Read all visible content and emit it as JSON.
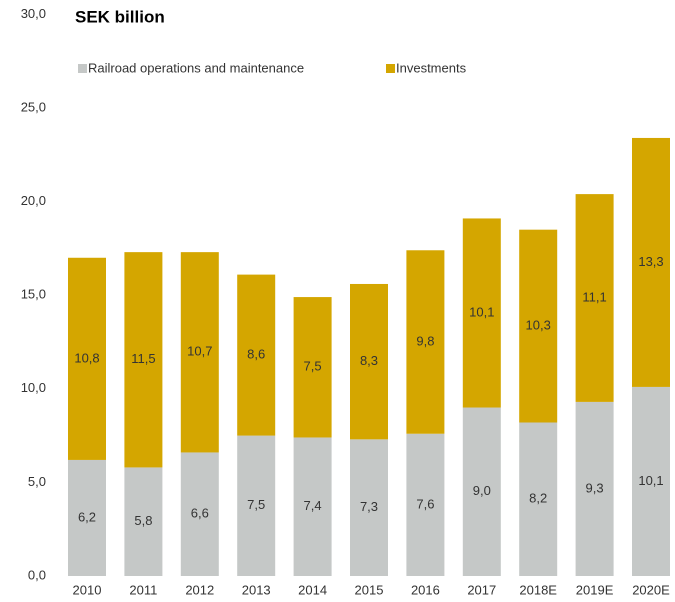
{
  "chart_data": {
    "type": "bar",
    "stacked": true,
    "title": "SEK billion",
    "categories": [
      "2010",
      "2011",
      "2012",
      "2013",
      "2014",
      "2015",
      "2016",
      "2017",
      "2018E",
      "2019E",
      "2020E"
    ],
    "series": [
      {
        "name": "Railroad operations and maintenance",
        "color": "#c5c8c7",
        "values": [
          6.2,
          5.8,
          6.6,
          7.5,
          7.4,
          7.3,
          7.6,
          9.0,
          8.2,
          9.3,
          10.1
        ],
        "value_labels": [
          "6,2",
          "5,8",
          "6,6",
          "7,5",
          "7,4",
          "7,3",
          "7,6",
          "9,0",
          "8,2",
          "9,3",
          "10,1"
        ]
      },
      {
        "name": "Investments",
        "color": "#d4a600",
        "values": [
          10.8,
          11.5,
          10.7,
          8.6,
          7.5,
          8.3,
          9.8,
          10.1,
          10.3,
          11.1,
          13.3
        ],
        "value_labels": [
          "10,8",
          "11,5",
          "10,7",
          "8,6",
          "7,5",
          "8,3",
          "9,8",
          "10,1",
          "10,3",
          "11,1",
          "13,3"
        ]
      }
    ],
    "ylim": [
      0,
      30
    ],
    "yticks": [
      {
        "value": 0,
        "label": "0,0"
      },
      {
        "value": 5,
        "label": "5,0"
      },
      {
        "value": 10,
        "label": "10,0"
      },
      {
        "value": 15,
        "label": "15,0"
      },
      {
        "value": 20,
        "label": "20,0"
      },
      {
        "value": 25,
        "label": "25,0"
      },
      {
        "value": 30,
        "label": "30,0"
      }
    ],
    "grid": false,
    "legend": "top"
  }
}
